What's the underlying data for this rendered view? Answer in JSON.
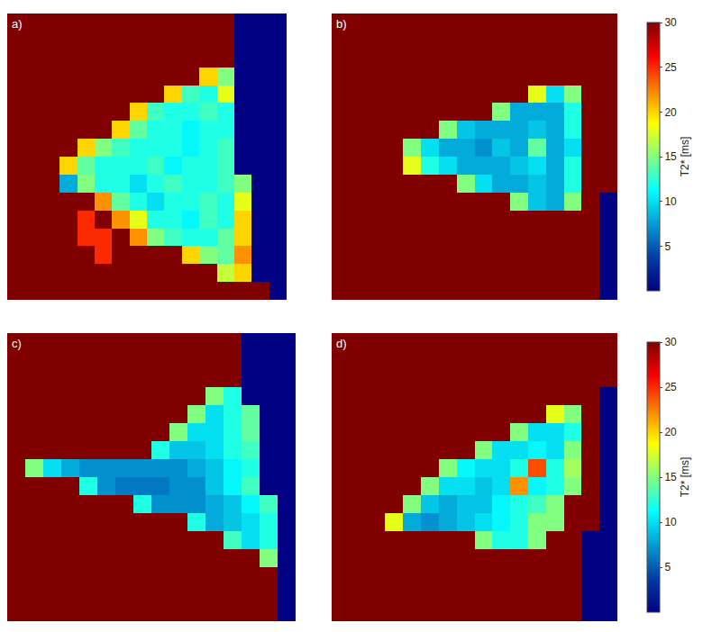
{
  "chart_data": [
    {
      "type": "heatmap",
      "title": "a)",
      "color": "Jet",
      "tick_labels": false,
      "zlim": [
        0,
        30
      ],
      "z": [
        [
          30,
          30,
          30,
          30,
          30,
          30,
          30,
          30,
          30,
          30,
          30,
          30,
          30,
          0,
          0,
          0
        ],
        [
          30,
          30,
          30,
          30,
          30,
          30,
          30,
          30,
          30,
          30,
          30,
          30,
          30,
          0,
          0,
          0
        ],
        [
          30,
          30,
          30,
          30,
          30,
          30,
          30,
          30,
          30,
          30,
          30,
          30,
          30,
          0,
          0,
          0
        ],
        [
          30,
          30,
          30,
          30,
          30,
          30,
          30,
          30,
          30,
          30,
          30,
          20,
          15,
          0,
          0,
          0
        ],
        [
          30,
          30,
          30,
          30,
          30,
          30,
          30,
          30,
          30,
          20,
          13,
          12,
          18,
          0,
          0,
          0
        ],
        [
          30,
          30,
          30,
          30,
          30,
          30,
          30,
          20,
          13,
          12,
          12,
          13,
          12,
          0,
          0,
          0
        ],
        [
          30,
          30,
          30,
          30,
          30,
          30,
          20,
          14,
          12,
          12,
          11,
          12,
          12,
          0,
          0,
          0
        ],
        [
          30,
          30,
          30,
          30,
          20,
          15,
          13,
          12,
          12,
          12,
          11,
          12,
          13,
          0,
          0,
          0
        ],
        [
          30,
          30,
          30,
          20,
          14,
          12,
          12,
          12,
          13,
          11,
          12,
          12,
          13,
          0,
          0,
          0
        ],
        [
          30,
          30,
          30,
          8,
          15,
          12,
          12,
          10,
          12,
          13,
          12,
          12,
          13,
          15,
          0,
          0
        ],
        [
          30,
          30,
          30,
          30,
          30,
          22,
          14,
          12,
          10,
          12,
          12,
          13,
          12,
          18,
          0,
          0
        ],
        [
          30,
          30,
          30,
          30,
          25,
          30,
          22,
          18,
          12,
          12,
          11,
          13,
          12,
          20,
          0,
          0
        ],
        [
          30,
          30,
          30,
          30,
          25,
          25,
          30,
          22,
          15,
          13,
          12,
          12,
          14,
          20,
          0,
          0
        ],
        [
          30,
          30,
          30,
          30,
          30,
          25,
          30,
          30,
          30,
          30,
          20,
          15,
          14,
          22,
          0,
          0
        ],
        [
          30,
          30,
          30,
          30,
          30,
          30,
          30,
          30,
          30,
          30,
          30,
          30,
          17,
          20,
          0,
          0
        ],
        [
          30,
          30,
          30,
          30,
          30,
          30,
          30,
          30,
          30,
          30,
          30,
          30,
          30,
          30,
          30,
          0
        ]
      ]
    },
    {
      "type": "heatmap",
      "title": "b)",
      "color": "Jet",
      "tick_labels": false,
      "zlim": [
        0,
        30
      ],
      "colorbar": {
        "title": "T2* [ms]",
        "range": [
          0,
          30
        ],
        "ticks": [
          5,
          10,
          15,
          20,
          25,
          30
        ]
      },
      "z": [
        [
          30,
          30,
          30,
          30,
          30,
          30,
          30,
          30,
          30,
          30,
          30,
          30,
          30,
          30,
          30,
          30
        ],
        [
          30,
          30,
          30,
          30,
          30,
          30,
          30,
          30,
          30,
          30,
          30,
          30,
          30,
          30,
          30,
          30
        ],
        [
          30,
          30,
          30,
          30,
          30,
          30,
          30,
          30,
          30,
          30,
          30,
          30,
          30,
          30,
          30,
          30
        ],
        [
          30,
          30,
          30,
          30,
          30,
          30,
          30,
          30,
          30,
          30,
          30,
          30,
          30,
          30,
          30,
          30
        ],
        [
          30,
          30,
          30,
          30,
          30,
          30,
          30,
          30,
          30,
          30,
          30,
          18,
          10,
          15,
          30,
          30
        ],
        [
          30,
          30,
          30,
          30,
          30,
          30,
          30,
          30,
          30,
          15,
          8,
          8,
          8,
          12,
          30,
          30
        ],
        [
          30,
          30,
          30,
          30,
          30,
          30,
          15,
          9,
          8,
          8,
          8,
          9,
          8,
          12,
          30,
          30
        ],
        [
          30,
          30,
          30,
          30,
          15,
          10,
          8,
          8,
          7,
          9,
          8,
          14,
          8,
          10,
          30,
          30
        ],
        [
          30,
          30,
          30,
          30,
          18,
          12,
          10,
          8,
          8,
          8,
          9,
          10,
          8,
          12,
          30,
          30
        ],
        [
          30,
          30,
          30,
          30,
          30,
          30,
          30,
          15,
          10,
          8,
          8,
          9,
          8,
          12,
          30,
          30
        ],
        [
          30,
          30,
          30,
          30,
          30,
          30,
          30,
          30,
          30,
          30,
          15,
          9,
          8,
          15,
          30,
          0
        ],
        [
          30,
          30,
          30,
          30,
          30,
          30,
          30,
          30,
          30,
          30,
          30,
          30,
          30,
          30,
          30,
          0
        ],
        [
          30,
          30,
          30,
          30,
          30,
          30,
          30,
          30,
          30,
          30,
          30,
          30,
          30,
          30,
          30,
          0
        ],
        [
          30,
          30,
          30,
          30,
          30,
          30,
          30,
          30,
          30,
          30,
          30,
          30,
          30,
          30,
          30,
          0
        ],
        [
          30,
          30,
          30,
          30,
          30,
          30,
          30,
          30,
          30,
          30,
          30,
          30,
          30,
          30,
          30,
          0
        ],
        [
          30,
          30,
          30,
          30,
          30,
          30,
          30,
          30,
          30,
          30,
          30,
          30,
          30,
          30,
          30,
          0
        ]
      ]
    },
    {
      "type": "heatmap",
      "title": "c)",
      "color": "Jet",
      "tick_labels": false,
      "zlim": [
        0,
        30
      ],
      "z": [
        [
          30,
          30,
          30,
          30,
          30,
          30,
          30,
          30,
          30,
          30,
          30,
          30,
          30,
          0,
          0,
          0
        ],
        [
          30,
          30,
          30,
          30,
          30,
          30,
          30,
          30,
          30,
          30,
          30,
          30,
          30,
          0,
          0,
          0
        ],
        [
          30,
          30,
          30,
          30,
          30,
          30,
          30,
          30,
          30,
          30,
          30,
          30,
          30,
          0,
          0,
          0
        ],
        [
          30,
          30,
          30,
          30,
          30,
          30,
          30,
          30,
          30,
          30,
          30,
          15,
          12,
          0,
          0,
          0
        ],
        [
          30,
          30,
          30,
          30,
          30,
          30,
          30,
          30,
          30,
          30,
          15,
          10,
          12,
          14,
          0,
          0
        ],
        [
          30,
          30,
          30,
          30,
          30,
          30,
          30,
          30,
          30,
          15,
          10,
          10,
          12,
          14,
          0,
          0
        ],
        [
          30,
          30,
          30,
          30,
          30,
          30,
          30,
          30,
          12,
          9,
          9,
          10,
          12,
          13,
          0,
          0
        ],
        [
          30,
          15,
          10,
          8,
          7,
          7,
          7,
          7,
          7,
          7,
          8,
          9,
          11,
          12,
          0,
          0
        ],
        [
          30,
          30,
          30,
          30,
          12,
          7,
          6,
          6,
          6,
          7,
          7,
          9,
          11,
          13,
          0,
          0
        ],
        [
          30,
          30,
          30,
          30,
          30,
          30,
          30,
          12,
          7,
          7,
          7,
          8,
          9,
          11,
          13,
          0
        ],
        [
          30,
          30,
          30,
          30,
          30,
          30,
          30,
          30,
          30,
          30,
          12,
          8,
          9,
          10,
          12,
          0
        ],
        [
          30,
          30,
          30,
          30,
          30,
          30,
          30,
          30,
          30,
          30,
          30,
          30,
          13,
          10,
          12,
          0
        ],
        [
          30,
          30,
          30,
          30,
          30,
          30,
          30,
          30,
          30,
          30,
          30,
          30,
          30,
          30,
          15,
          0
        ],
        [
          30,
          30,
          30,
          30,
          30,
          30,
          30,
          30,
          30,
          30,
          30,
          30,
          30,
          30,
          30,
          0
        ],
        [
          30,
          30,
          30,
          30,
          30,
          30,
          30,
          30,
          30,
          30,
          30,
          30,
          30,
          30,
          30,
          0
        ],
        [
          30,
          30,
          30,
          30,
          30,
          30,
          30,
          30,
          30,
          30,
          30,
          30,
          30,
          30,
          30,
          0
        ]
      ]
    },
    {
      "type": "heatmap",
      "title": "d)",
      "color": "Jet",
      "tick_labels": false,
      "zlim": [
        0,
        30
      ],
      "colorbar": {
        "title": "T2* [ms]",
        "range": [
          0,
          30
        ],
        "ticks": [
          5,
          10,
          15,
          20,
          25,
          30
        ]
      },
      "z": [
        [
          30,
          30,
          30,
          30,
          30,
          30,
          30,
          30,
          30,
          30,
          30,
          30,
          30,
          30,
          30,
          30
        ],
        [
          30,
          30,
          30,
          30,
          30,
          30,
          30,
          30,
          30,
          30,
          30,
          30,
          30,
          30,
          30,
          30
        ],
        [
          30,
          30,
          30,
          30,
          30,
          30,
          30,
          30,
          30,
          30,
          30,
          30,
          30,
          30,
          30,
          30
        ],
        [
          30,
          30,
          30,
          30,
          30,
          30,
          30,
          30,
          30,
          30,
          30,
          30,
          30,
          30,
          30,
          0
        ],
        [
          30,
          30,
          30,
          30,
          30,
          30,
          30,
          30,
          30,
          30,
          30,
          30,
          18,
          15,
          30,
          0
        ],
        [
          30,
          30,
          30,
          30,
          30,
          30,
          30,
          30,
          30,
          30,
          15,
          10,
          10,
          12,
          30,
          0
        ],
        [
          30,
          30,
          30,
          30,
          30,
          30,
          30,
          30,
          15,
          10,
          10,
          11,
          10,
          15,
          30,
          0
        ],
        [
          30,
          30,
          30,
          30,
          30,
          30,
          15,
          11,
          10,
          10,
          12,
          24,
          12,
          16,
          30,
          0
        ],
        [
          30,
          30,
          30,
          30,
          30,
          15,
          10,
          10,
          9,
          10,
          22,
          11,
          12,
          15,
          30,
          0
        ],
        [
          30,
          30,
          30,
          30,
          15,
          9,
          8,
          9,
          9,
          11,
          12,
          13,
          15,
          30,
          30,
          0
        ],
        [
          30,
          30,
          30,
          18,
          8,
          7,
          8,
          9,
          10,
          11,
          12,
          15,
          15,
          30,
          30,
          0
        ],
        [
          30,
          30,
          30,
          30,
          30,
          30,
          30,
          30,
          15,
          12,
          12,
          15,
          30,
          30,
          0,
          0
        ],
        [
          30,
          30,
          30,
          30,
          30,
          30,
          30,
          30,
          30,
          30,
          30,
          30,
          30,
          30,
          0,
          0
        ],
        [
          30,
          30,
          30,
          30,
          30,
          30,
          30,
          30,
          30,
          30,
          30,
          30,
          30,
          30,
          0,
          0
        ],
        [
          30,
          30,
          30,
          30,
          30,
          30,
          30,
          30,
          30,
          30,
          30,
          30,
          30,
          30,
          0,
          0
        ],
        [
          30,
          30,
          30,
          30,
          30,
          30,
          30,
          30,
          30,
          30,
          30,
          30,
          30,
          30,
          0,
          0
        ]
      ]
    }
  ]
}
